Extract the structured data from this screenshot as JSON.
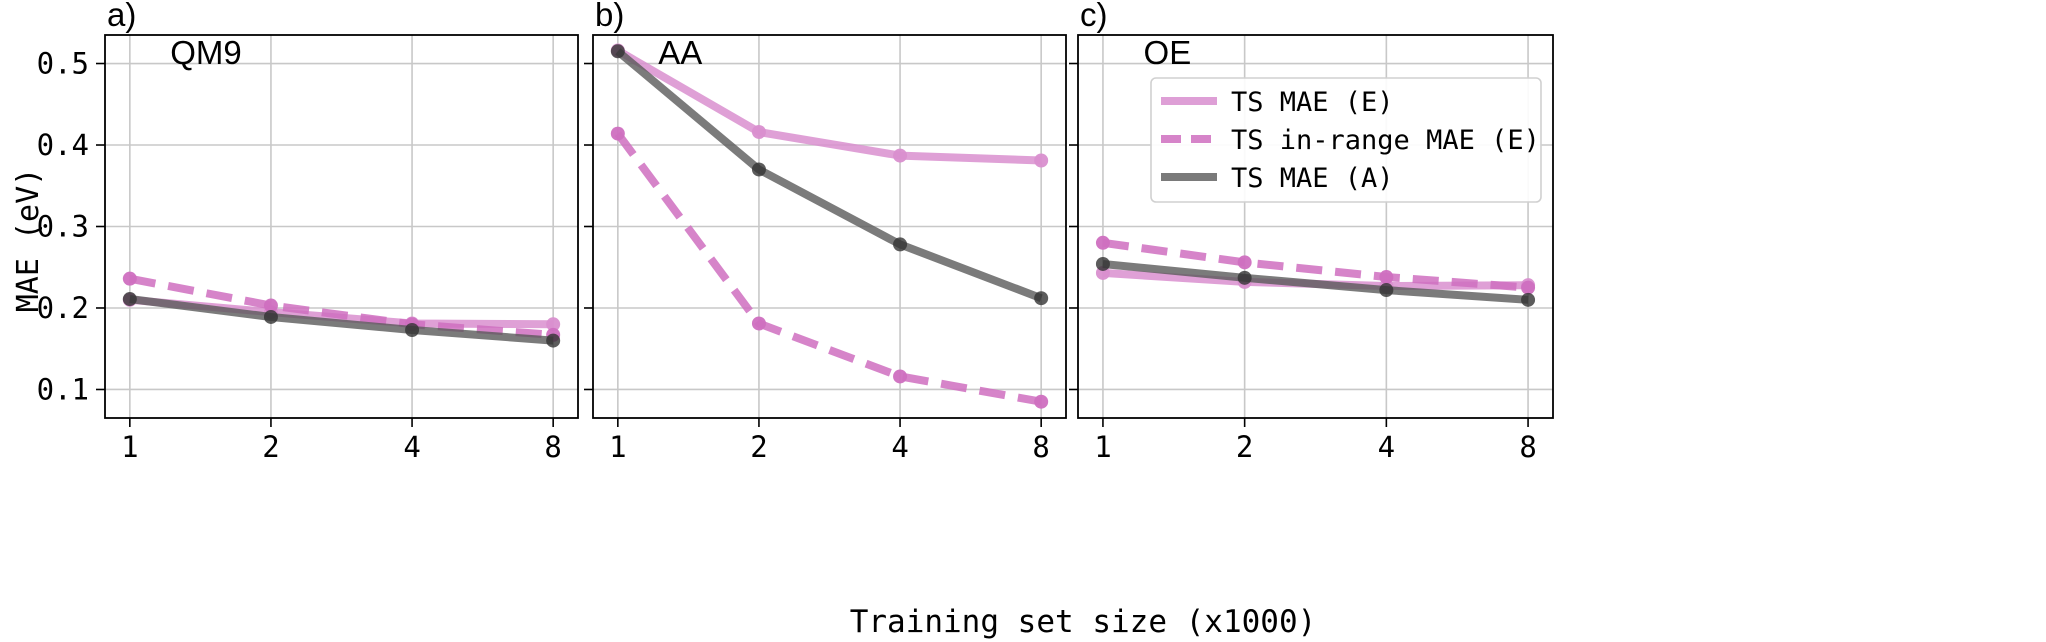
{
  "figure": {
    "ylabel": "MAE (eV)",
    "xlabel": "Training set size (x1000)"
  },
  "legend": {
    "placement": "top-right of panel c",
    "entries": [
      {
        "label": "TS MAE (E)",
        "style": "solid",
        "color": "#d98fcf"
      },
      {
        "label": "TS in-range MAE (E)",
        "style": "dashed",
        "color": "#cf6fc0"
      },
      {
        "label": "TS MAE (A)",
        "style": "solid",
        "color": "#5a5a5a"
      }
    ]
  },
  "chart_data": [
    {
      "type": "line",
      "panel": "a)",
      "title": "QM9",
      "x": [
        1,
        2,
        4,
        8
      ],
      "xticks": [
        "1",
        "2",
        "4",
        "8"
      ],
      "xscale": "log2",
      "ylim": [
        0.065,
        0.535
      ],
      "yticks": [
        "0.1",
        "0.2",
        "0.3",
        "0.4",
        "0.5"
      ],
      "grid": true,
      "series": [
        {
          "name": "TS MAE (E)",
          "values": [
            0.21,
            0.195,
            0.181,
            0.18
          ],
          "color": "#d98fcf",
          "style": "solid"
        },
        {
          "name": "TS in-range MAE (E)",
          "values": [
            0.236,
            0.203,
            0.18,
            0.167
          ],
          "color": "#cf6fc0",
          "style": "dashed"
        },
        {
          "name": "TS MAE (A)",
          "values": [
            0.211,
            0.189,
            0.173,
            0.16
          ],
          "color": "#5a5a5a",
          "style": "solid"
        }
      ]
    },
    {
      "type": "line",
      "panel": "b)",
      "title": "AA",
      "x": [
        1,
        2,
        4,
        8
      ],
      "xticks": [
        "1",
        "2",
        "4",
        "8"
      ],
      "xscale": "log2",
      "ylim": [
        0.065,
        0.535
      ],
      "grid": true,
      "series": [
        {
          "name": "TS MAE (E)",
          "values": [
            0.516,
            0.416,
            0.387,
            0.381
          ],
          "color": "#d98fcf",
          "style": "solid"
        },
        {
          "name": "TS in-range MAE (E)",
          "values": [
            0.414,
            0.181,
            0.116,
            0.085
          ],
          "color": "#cf6fc0",
          "style": "dashed"
        },
        {
          "name": "TS MAE (A)",
          "values": [
            0.515,
            0.37,
            0.278,
            0.212
          ],
          "color": "#5a5a5a",
          "style": "solid"
        }
      ]
    },
    {
      "type": "line",
      "panel": "c)",
      "title": "OE",
      "x": [
        1,
        2,
        4,
        8
      ],
      "xticks": [
        "1",
        "2",
        "4",
        "8"
      ],
      "xscale": "log2",
      "ylim": [
        0.065,
        0.535
      ],
      "grid": true,
      "series": [
        {
          "name": "TS MAE (E)",
          "values": [
            0.243,
            0.232,
            0.227,
            0.228
          ],
          "color": "#d98fcf",
          "style": "solid"
        },
        {
          "name": "TS in-range MAE (E)",
          "values": [
            0.28,
            0.256,
            0.238,
            0.225
          ],
          "color": "#cf6fc0",
          "style": "dashed"
        },
        {
          "name": "TS MAE (A)",
          "values": [
            0.254,
            0.237,
            0.222,
            0.21
          ],
          "color": "#5a5a5a",
          "style": "solid"
        }
      ]
    }
  ]
}
